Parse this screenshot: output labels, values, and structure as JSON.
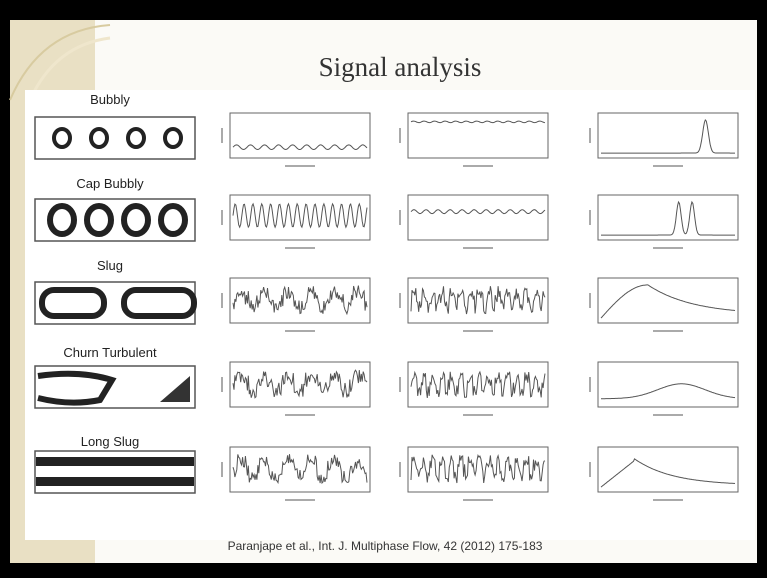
{
  "title": "Signal analysis",
  "regimes": [
    "Bubbly",
    "Cap Bubbly",
    "Slug",
    "Churn Turbulent",
    "Long Slug"
  ],
  "citation": "Paranjape et al., Int. J. Multiphase Flow, 42 (2012) 175-183"
}
